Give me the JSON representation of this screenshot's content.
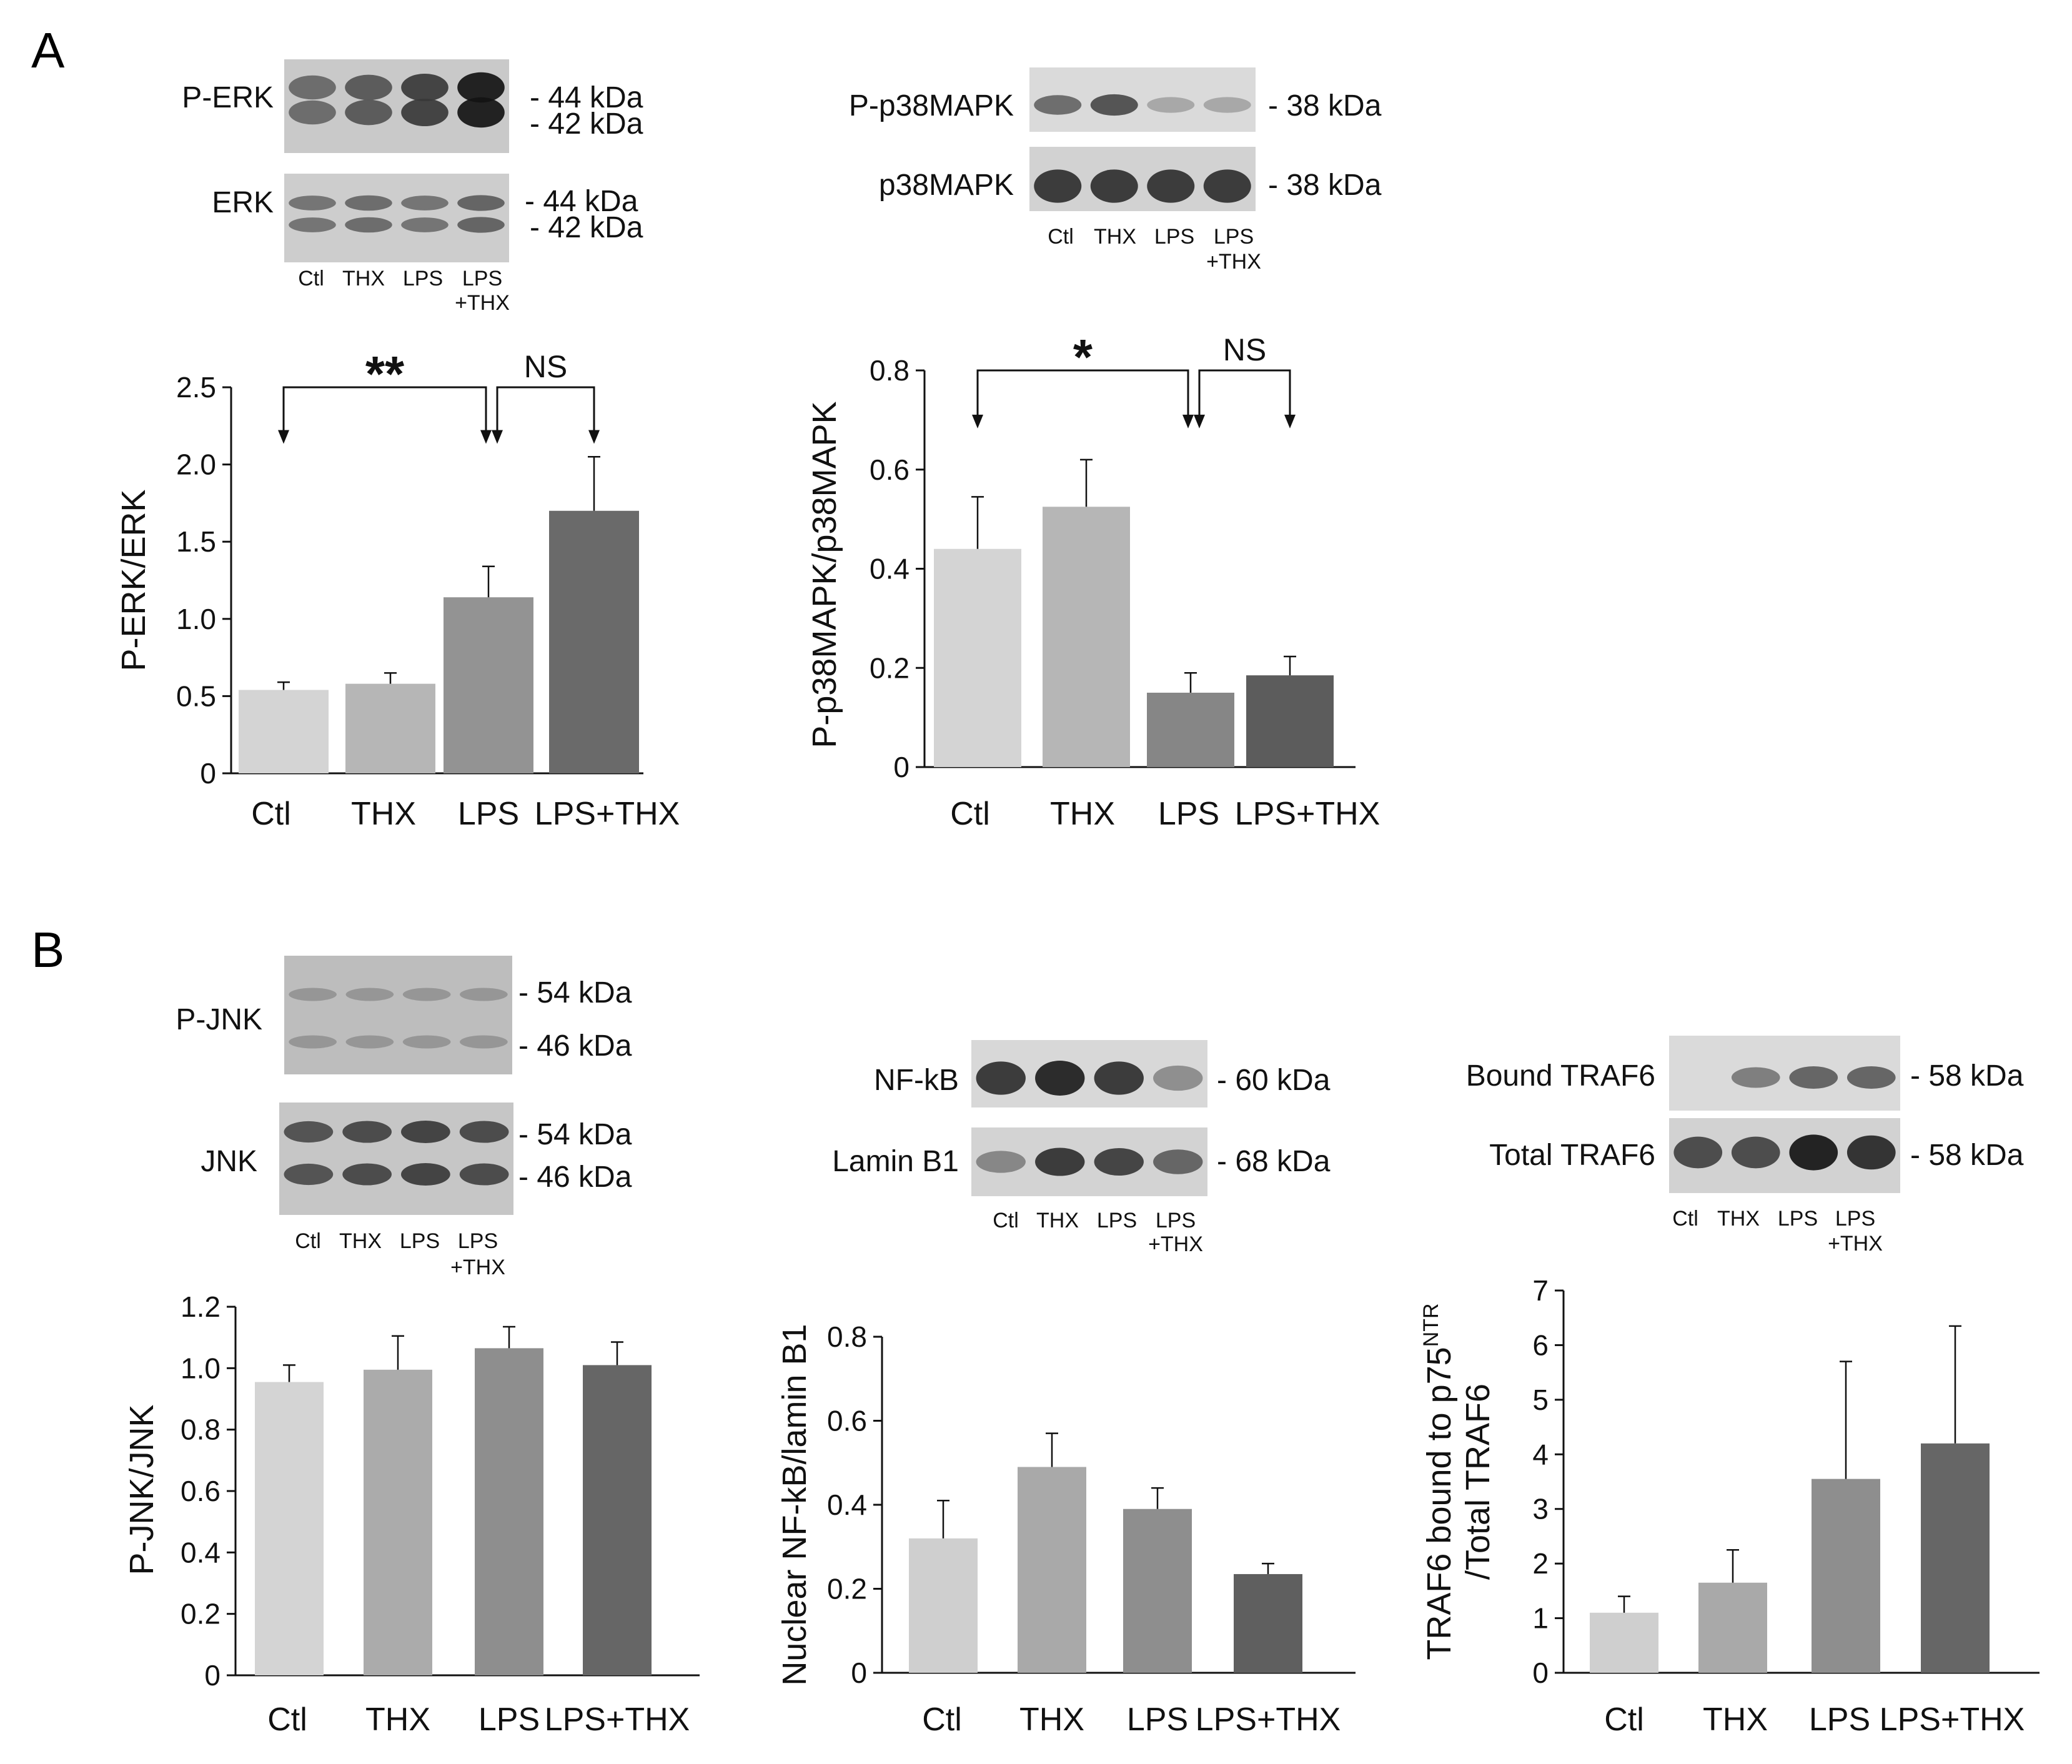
{
  "panels": {
    "A": {
      "letter": "A",
      "blots": [
        {
          "id": "erk",
          "lane_labels": [
            "Ctl",
            "THX",
            "LPS",
            "LPS",
            "+THX"
          ],
          "rows": [
            {
              "label": "P-ERK",
              "kda": [
                "- 44 kDa",
                "- 42 kDa"
              ],
              "band_intensity": [
                0.55,
                0.65,
                0.8,
                1.0
              ]
            },
            {
              "label": "ERK",
              "kda": [
                "- 44 kDa",
                "- 42 kDa"
              ],
              "band_intensity": [
                0.5,
                0.55,
                0.5,
                0.6
              ]
            }
          ]
        },
        {
          "id": "p38",
          "lane_labels": [
            "Ctl",
            "THX",
            "LPS",
            "LPS",
            "+THX"
          ],
          "rows": [
            {
              "label": "P-p38MAPK",
              "kda": [
                "- 38 kDa"
              ],
              "band_intensity": [
                0.55,
                0.7,
                0.2,
                0.2
              ]
            },
            {
              "label": "p38MAPK",
              "kda": [
                "- 38 kDa"
              ],
              "band_intensity": [
                0.85,
                0.85,
                0.85,
                0.85
              ]
            }
          ]
        }
      ]
    },
    "B": {
      "letter": "B",
      "blots": [
        {
          "id": "jnk",
          "lane_labels": [
            "Ctl",
            "THX",
            "LPS",
            "LPS",
            "+THX"
          ],
          "rows": [
            {
              "label": "P-JNK",
              "kda": [
                "- 54 kDa",
                "- 46 kDa"
              ],
              "band_intensity": [
                0.3,
                0.3,
                0.3,
                0.3
              ]
            },
            {
              "label": "JNK",
              "kda": [
                "- 54 kDa",
                "- 46 kDa"
              ],
              "band_intensity": [
                0.7,
                0.75,
                0.8,
                0.75
              ]
            }
          ]
        },
        {
          "id": "nfkb",
          "lane_labels": [
            "Ctl",
            "THX",
            "LPS",
            "LPS",
            "+THX"
          ],
          "rows": [
            {
              "label": "NF-kB",
              "kda": [
                "- 60 kDa"
              ],
              "band_intensity": [
                0.85,
                0.95,
                0.85,
                0.35
              ]
            },
            {
              "label": "Lamin B1",
              "kda": [
                "- 68 kDa"
              ],
              "band_intensity": [
                0.4,
                0.85,
                0.8,
                0.6
              ]
            }
          ]
        },
        {
          "id": "traf6",
          "lane_labels": [
            "Ctl",
            "THX",
            "LPS",
            "LPS",
            "+THX"
          ],
          "rows": [
            {
              "label": "Bound TRAF6",
              "kda": [
                "- 58 kDa"
              ],
              "band_intensity": [
                0.0,
                0.45,
                0.6,
                0.6
              ]
            },
            {
              "label": "Total TRAF6",
              "kda": [
                "- 58 kDa"
              ],
              "band_intensity": [
                0.75,
                0.75,
                1.0,
                0.9
              ]
            }
          ]
        }
      ]
    }
  },
  "chart_data": [
    {
      "id": "perk",
      "type": "bar",
      "categories": [
        "Ctl",
        "THX",
        "LPS",
        "LPS+THX"
      ],
      "values": [
        0.54,
        0.58,
        1.14,
        1.7
      ],
      "errors": [
        0.05,
        0.07,
        0.2,
        0.35
      ],
      "colors": [
        "#d4d4d4",
        "#b6b6b6",
        "#939393",
        "#6a6a6a"
      ],
      "ylabel": "P-ERK/ERK",
      "ylim": [
        0,
        2.5
      ],
      "yticks": [
        "0",
        "0.5",
        "1.0",
        "1.5",
        "2.0",
        "2.5"
      ],
      "significance": [
        {
          "from": 0,
          "to": 2,
          "label": "**"
        },
        {
          "from": 2,
          "to": 3,
          "label": "NS"
        }
      ]
    },
    {
      "id": "pp38",
      "type": "bar",
      "categories": [
        "Ctl",
        "THX",
        "LPS",
        "LPS+THX"
      ],
      "values": [
        0.44,
        0.525,
        0.15,
        0.185
      ],
      "errors": [
        0.105,
        0.095,
        0.04,
        0.038
      ],
      "colors": [
        "#d4d4d4",
        "#b6b6b6",
        "#868686",
        "#5c5c5c"
      ],
      "ylabel": "P-p38MAPK/p38MAPK",
      "ylim": [
        0,
        0.8
      ],
      "yticks": [
        "0",
        "0.2",
        "0.4",
        "0.6",
        "0.8"
      ],
      "significance": [
        {
          "from": 0,
          "to": 2,
          "label": "*"
        },
        {
          "from": 2,
          "to": 3,
          "label": "NS"
        }
      ]
    },
    {
      "id": "pjnk",
      "type": "bar",
      "categories": [
        "Ctl",
        "THX",
        "LPS",
        "LPS+THX"
      ],
      "values": [
        0.955,
        0.995,
        1.065,
        1.01
      ],
      "errors": [
        0.055,
        0.11,
        0.07,
        0.075
      ],
      "colors": [
        "#d4d4d4",
        "#ababab",
        "#8e8e8e",
        "#666666"
      ],
      "ylabel": "P-JNK/JNK",
      "ylim": [
        0,
        1.2
      ],
      "yticks": [
        "0",
        "0.2",
        "0.4",
        "0.6",
        "0.8",
        "1.0",
        "1.2"
      ],
      "significance": []
    },
    {
      "id": "nfkb",
      "type": "bar",
      "categories": [
        "Ctl",
        "THX",
        "LPS",
        "LPS+THX"
      ],
      "values": [
        0.32,
        0.49,
        0.39,
        0.235
      ],
      "errors": [
        0.09,
        0.08,
        0.05,
        0.025
      ],
      "colors": [
        "#cfcfcf",
        "#a9a9a9",
        "#8e8e8e",
        "#5f5f5f"
      ],
      "ylabel": "Nuclear NF-kB/lamin B1",
      "ylim": [
        0,
        0.8
      ],
      "yticks": [
        "0",
        "0.2",
        "0.4",
        "0.6",
        "0.8"
      ],
      "significance": []
    },
    {
      "id": "traf6",
      "type": "bar",
      "categories": [
        "Ctl",
        "THX",
        "LPS",
        "LPS+THX"
      ],
      "values": [
        1.1,
        1.65,
        3.55,
        4.2
      ],
      "errors": [
        0.3,
        0.6,
        2.15,
        2.15
      ],
      "colors": [
        "#cfcfcf",
        "#a9a9a9",
        "#8e8e8e",
        "#666666"
      ],
      "ylabel_line1": "TRAF6 bound to p75",
      "ylabel_sup": "NTR",
      "ylabel_line2": "/Total TRAF6",
      "ylim": [
        0,
        7
      ],
      "yticks": [
        "0",
        "1",
        "2",
        "3",
        "4",
        "5",
        "6",
        "7"
      ],
      "significance": []
    }
  ]
}
